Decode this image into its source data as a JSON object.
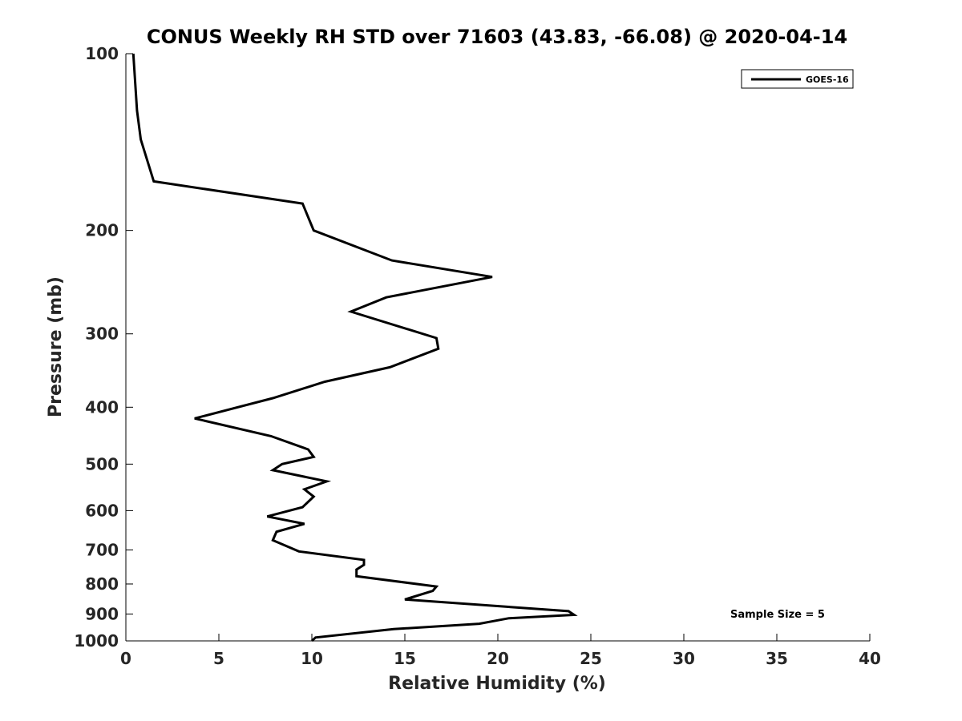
{
  "chart_data": {
    "type": "line",
    "title": "CONUS Weekly RH STD over 71603 (43.83, -66.08) @ 2020-04-14",
    "xlabel": "Relative Humidity (%)",
    "ylabel": "Pressure (mb)",
    "xlim": [
      0,
      40
    ],
    "ylim": [
      100,
      1000
    ],
    "y_scale": "log",
    "y_reversed": true,
    "x_ticks": [
      0,
      5,
      10,
      15,
      20,
      25,
      30,
      35,
      40
    ],
    "x_tick_labels": [
      "0",
      "5",
      "10",
      "15",
      "20",
      "25",
      "30",
      "35",
      "40"
    ],
    "y_ticks": [
      100,
      200,
      300,
      400,
      500,
      600,
      700,
      800,
      900,
      1000
    ],
    "y_tick_labels": [
      "100",
      "200",
      "300",
      "400",
      "500",
      "600",
      "700",
      "800",
      "900",
      "1000"
    ],
    "grid": false,
    "legend_position": "top-right",
    "series": [
      {
        "name": "GOES-16",
        "color": "#000000",
        "points": [
          [
            0.4,
            100
          ],
          [
            0.6,
            125
          ],
          [
            0.8,
            140
          ],
          [
            1.5,
            165
          ],
          [
            9.5,
            180
          ],
          [
            10.1,
            200
          ],
          [
            14.3,
            225
          ],
          [
            19.7,
            240
          ],
          [
            14.0,
            260
          ],
          [
            12.1,
            275
          ],
          [
            16.7,
            305
          ],
          [
            16.8,
            318
          ],
          [
            14.2,
            342
          ],
          [
            10.7,
            362
          ],
          [
            7.9,
            386
          ],
          [
            3.7,
            418
          ],
          [
            7.8,
            448
          ],
          [
            9.8,
            472
          ],
          [
            10.1,
            486
          ],
          [
            8.4,
            500
          ],
          [
            7.9,
            512
          ],
          [
            10.8,
            535
          ],
          [
            9.6,
            552
          ],
          [
            10.1,
            568
          ],
          [
            9.5,
            592
          ],
          [
            7.6,
            614
          ],
          [
            9.6,
            632
          ],
          [
            8.1,
            652
          ],
          [
            7.9,
            674
          ],
          [
            9.3,
            704
          ],
          [
            12.8,
            728
          ],
          [
            12.8,
            742
          ],
          [
            12.4,
            756
          ],
          [
            12.4,
            776
          ],
          [
            16.7,
            808
          ],
          [
            16.5,
            822
          ],
          [
            15.0,
            850
          ],
          [
            23.8,
            890
          ],
          [
            24.1,
            903
          ],
          [
            20.6,
            915
          ],
          [
            19.0,
            935
          ],
          [
            14.4,
            955
          ],
          [
            10.2,
            987
          ],
          [
            10.0,
            1000
          ]
        ]
      }
    ],
    "annotations": [
      "Sample Size = 5"
    ]
  }
}
